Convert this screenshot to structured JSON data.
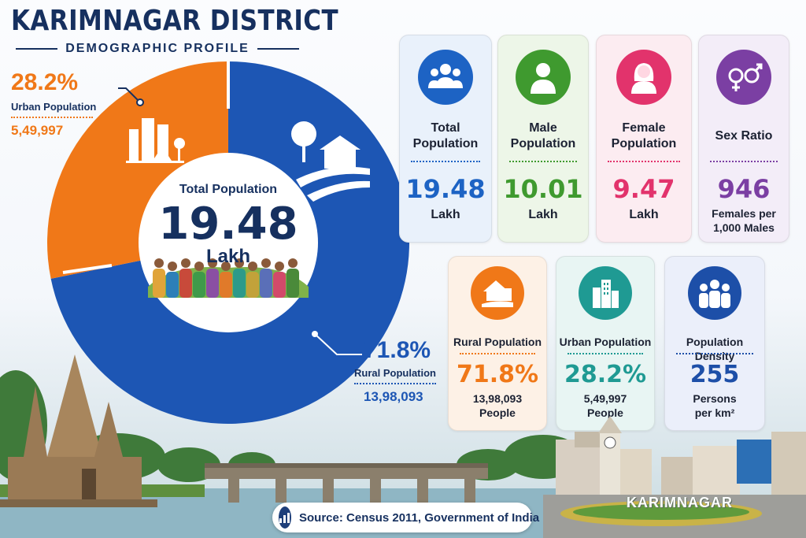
{
  "header": {
    "title": "KARIMNAGAR DISTRICT",
    "subtitle": "DEMOGRAPHIC PROFILE"
  },
  "donut": {
    "center_label": "Total Population",
    "center_value": "19.48",
    "center_unit": "Lakh",
    "urban": {
      "pct": "28.2%",
      "label": "Urban Population",
      "count": "5,49,997",
      "share": 0.282,
      "color": "#f07818"
    },
    "rural": {
      "pct": "71.8%",
      "label": "Rural Population",
      "count": "13,98,093",
      "share": 0.718,
      "color": "#1d56b4"
    }
  },
  "cards_top": [
    {
      "name": "total-population",
      "label": "Total Population",
      "value": "19.48",
      "unit": "Lakh",
      "accent": "#1d63c4",
      "bg": "#e9f1fb",
      "icon": "people-group-icon"
    },
    {
      "name": "male-population",
      "label": "Male Population",
      "value": "10.01",
      "unit": "Lakh",
      "accent": "#3f9a2f",
      "bg": "#edf6e8",
      "icon": "male-person-icon"
    },
    {
      "name": "female-population",
      "label": "Female Population",
      "value": "9.47",
      "unit": "Lakh",
      "accent": "#e2336c",
      "bg": "#fcecf1",
      "icon": "female-person-icon"
    },
    {
      "name": "sex-ratio",
      "label": "Sex Ratio",
      "value": "946",
      "unit": "Females per 1,000 Males",
      "accent": "#7b3fa3",
      "bg": "#f3edf8",
      "icon": "gender-symbols-icon"
    }
  ],
  "cards_bottom": [
    {
      "name": "rural-population",
      "label": "Rural Population",
      "value": "71.8%",
      "unit": "13,98,093 People",
      "accent": "#f07818",
      "bg": "#fdf1e6",
      "icon": "rural-house-icon"
    },
    {
      "name": "urban-population",
      "label": "Urban Population",
      "value": "28.2%",
      "unit": "5,49,997 People",
      "accent": "#1f9a93",
      "bg": "#e8f5f3",
      "icon": "city-buildings-icon"
    },
    {
      "name": "population-density",
      "label": "Population Density",
      "value": "255",
      "unit": "Persons per km²",
      "accent": "#1d4fa8",
      "bg": "#ebeffa",
      "icon": "crowd-icon"
    }
  ],
  "footer": {
    "source": "Source: Census 2011, Government of India",
    "city_sign": "KARIMNAGAR"
  }
}
